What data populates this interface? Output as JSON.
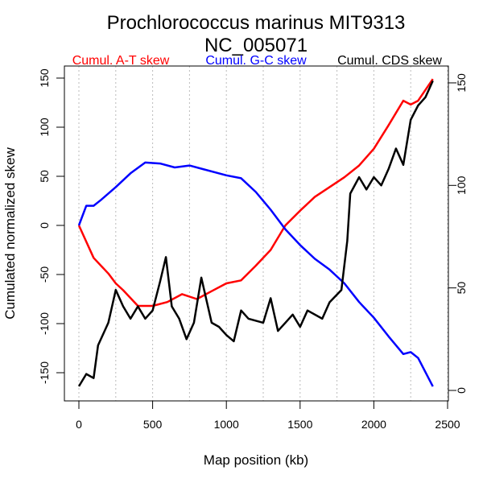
{
  "chart_data": {
    "type": "line",
    "title": "Prochlorococcus marinus MIT9313",
    "subtitle": "NC_005071",
    "xlabel": "Map position (kb)",
    "ylabel": "Cumulated normalized skew",
    "xlim": [
      0,
      2500
    ],
    "ylim_left": [
      -165,
      155
    ],
    "ylim_right": [
      0,
      155
    ],
    "x_ticks": [
      0,
      500,
      1000,
      1500,
      2000,
      2500
    ],
    "y_ticks_left": [
      -150,
      -100,
      -50,
      0,
      50,
      100,
      150
    ],
    "y_ticks_right": [
      0,
      50,
      100,
      150
    ],
    "grid": "vertical dotted every 250 kb",
    "legend_placement": "top",
    "series": [
      {
        "name": "Cumul. A-T skew",
        "color": "#ff0000",
        "axis": "left",
        "x": [
          0,
          100,
          200,
          250,
          300,
          400,
          500,
          600,
          700,
          800,
          900,
          1000,
          1100,
          1200,
          1300,
          1400,
          1500,
          1600,
          1700,
          1800,
          1900,
          2000,
          2100,
          2200,
          2250,
          2300,
          2400
        ],
        "y": [
          0,
          -33,
          -49,
          -59,
          -66,
          -82,
          -82,
          -78,
          -70,
          -75,
          -67,
          -59,
          -56,
          -41,
          -25,
          0,
          15,
          29,
          39,
          49,
          61,
          78,
          102,
          127,
          123,
          127,
          149
        ]
      },
      {
        "name": "Cumul. G-C skew",
        "color": "#0000ff",
        "axis": "left",
        "x": [
          0,
          50,
          100,
          150,
          250,
          350,
          450,
          550,
          650,
          750,
          850,
          1000,
          1100,
          1200,
          1300,
          1400,
          1500,
          1600,
          1700,
          1800,
          1900,
          2000,
          2100,
          2200,
          2250,
          2300,
          2400
        ],
        "y": [
          0,
          20,
          20,
          26,
          39,
          53,
          64,
          63,
          59,
          61,
          57,
          51,
          48,
          34,
          16,
          -4,
          -20,
          -34,
          -45,
          -59,
          -78,
          -94,
          -113,
          -131,
          -129,
          -135,
          -164
        ]
      },
      {
        "name": "Cumul. CDS skew",
        "color": "#000000",
        "axis": "right",
        "x": [
          0,
          50,
          100,
          130,
          200,
          250,
          300,
          350,
          400,
          450,
          500,
          550,
          590,
          630,
          680,
          730,
          780,
          830,
          900,
          950,
          1000,
          1050,
          1100,
          1150,
          1250,
          1300,
          1350,
          1400,
          1450,
          1500,
          1550,
          1650,
          1700,
          1780,
          1820,
          1840,
          1900,
          1950,
          2000,
          2050,
          2100,
          2150,
          2200,
          2250,
          2300,
          2350,
          2400
        ],
        "y": [
          2,
          8,
          6,
          22,
          33,
          49,
          41,
          35,
          41,
          35,
          39,
          53,
          65,
          41,
          35,
          25,
          33,
          55,
          33,
          31,
          27,
          24,
          39,
          35,
          33,
          45,
          29,
          33,
          37,
          31,
          39,
          35,
          43,
          49,
          73,
          96,
          104,
          98,
          104,
          100,
          108,
          118,
          110,
          132,
          139,
          143,
          151
        ]
      }
    ]
  }
}
